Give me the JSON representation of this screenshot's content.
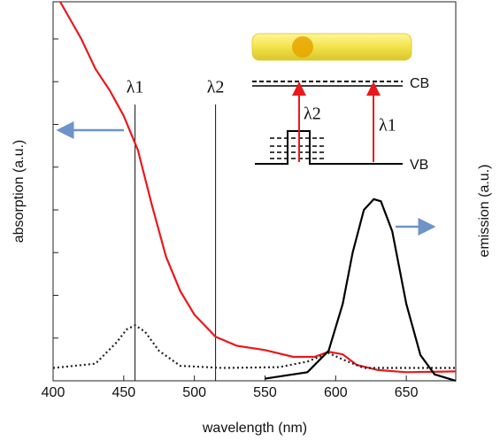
{
  "chart_data": {
    "type": "line",
    "xlabel": "wavelength (nm)",
    "ylabel": "absorption (a.u.)",
    "y2label": "emission (a.u.)",
    "xlim": [
      400,
      685
    ],
    "xticks": [
      400,
      450,
      500,
      550,
      600,
      650
    ],
    "ylim": [
      0,
      8.87
    ],
    "yticks": [
      1,
      2,
      3,
      4,
      5,
      6,
      7,
      8
    ],
    "series": [
      {
        "color": "#e8191c",
        "linestyle": "solid",
        "x": [
          405,
          420,
          430,
          440,
          450,
          460,
          470,
          480,
          490,
          500,
          515,
          530,
          550,
          570,
          585,
          595,
          605,
          615,
          630,
          650,
          685
        ],
        "values": [
          8.87,
          8.0,
          7.3,
          6.8,
          6.2,
          5.4,
          4.1,
          2.9,
          2.1,
          1.55,
          1.03,
          0.82,
          0.72,
          0.56,
          0.56,
          0.68,
          0.62,
          0.37,
          0.25,
          0.2,
          0.22
        ]
      },
      {
        "color": "#222222",
        "linestyle": "dotted",
        "x": [
          400,
          430,
          445,
          452,
          458,
          465,
          475,
          490,
          520,
          560,
          580,
          595,
          605,
          620,
          685
        ],
        "values": [
          0.3,
          0.4,
          0.9,
          1.2,
          1.3,
          1.15,
          0.7,
          0.35,
          0.3,
          0.32,
          0.45,
          0.65,
          0.5,
          0.3,
          0.3
        ]
      },
      {
        "color": "#000000",
        "linestyle": "solid",
        "x": [
          550,
          580,
          595,
          605,
          612,
          620,
          627,
          632,
          640,
          650,
          660,
          670,
          685
        ],
        "values": [
          0.05,
          0.2,
          0.7,
          1.8,
          3.0,
          4.0,
          4.25,
          4.2,
          3.5,
          1.8,
          0.6,
          0.15,
          0.0
        ]
      }
    ],
    "vlines": [
      {
        "label": "λ1",
        "x": 458
      },
      {
        "label": "λ2",
        "x": 515
      }
    ],
    "inset": {
      "cb": "CB",
      "vb": "VB",
      "lambda2": "λ2",
      "lambda1": "λ1"
    }
  }
}
